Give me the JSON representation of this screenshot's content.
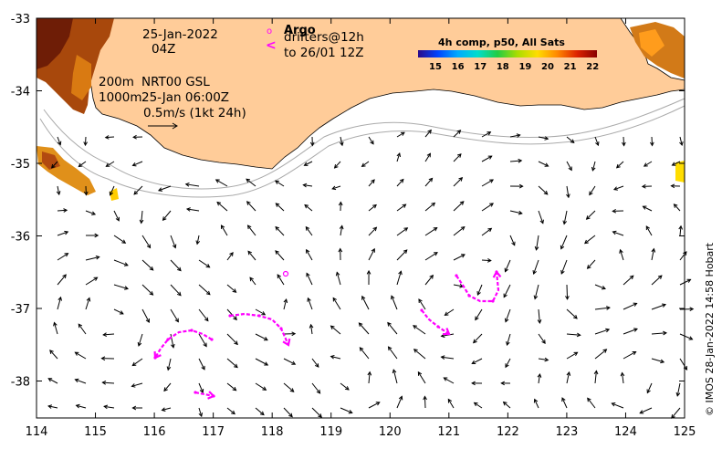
{
  "map": {
    "x_ticks": [
      "114",
      "115",
      "116",
      "117",
      "118",
      "119",
      "120",
      "121",
      "122",
      "123",
      "124",
      "125"
    ],
    "y_ticks": [
      "-33",
      "-34",
      "-35",
      "-36",
      "-37",
      "-38"
    ],
    "date_line1": "25-Jan-2022",
    "date_line2": "04Z",
    "depth_200": "200m",
    "depth_1000": "1000m",
    "nrt_label": "NRT00 GSL",
    "nrt_time": "25-Jan 06:00Z",
    "scale_label": "0.5m/s (1kt 24h)",
    "argo_marker": "o",
    "argo_title": "Argo",
    "drifter_marker": "<",
    "drifters_line1": "drifters@12h",
    "drifters_line2": "to 26/01 12Z",
    "colorbar_title": "4h comp, p50, All Sats",
    "colorbar_ticks": [
      "15",
      "16",
      "17",
      "18",
      "19",
      "20",
      "21",
      "22"
    ],
    "credit": "© IMOS 28-Jan-2022 14:58 Hobart",
    "colors": {
      "land": "#ffcc99",
      "drifter": "#ff00ff",
      "isobath": "#aaaaaa"
    },
    "colorbar_stops": [
      "#2a0a8a",
      "#0044ff",
      "#00aaff",
      "#00ddcc",
      "#22cc44",
      "#aadd00",
      "#ffdd00",
      "#ff8800",
      "#dd2200",
      "#880000"
    ]
  }
}
